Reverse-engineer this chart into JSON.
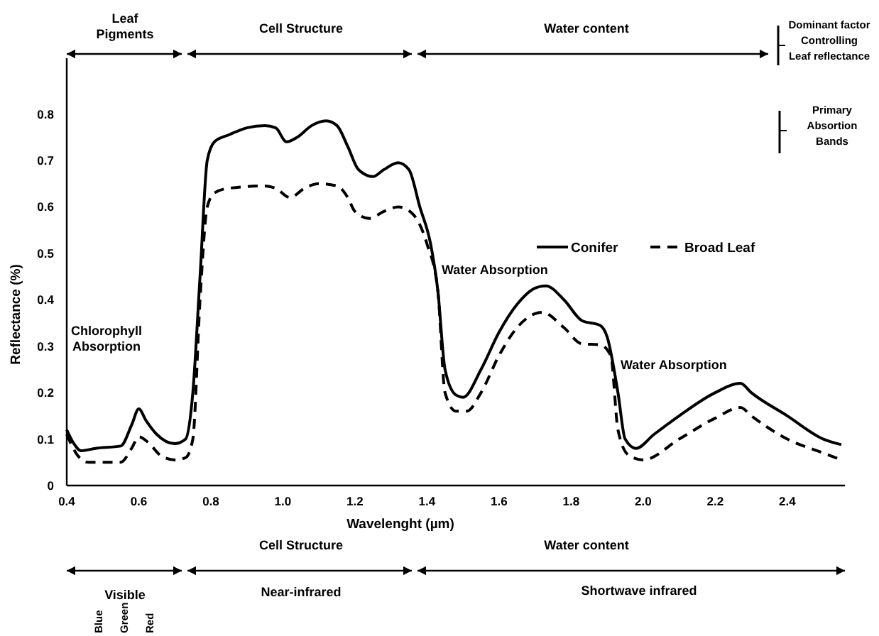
{
  "chart_data": {
    "type": "line",
    "xlabel": "Wavelenght (µm)",
    "ylabel": "Reflectance (%)",
    "xlim": [
      0.4,
      2.56
    ],
    "xticks": [
      {
        "value": 0.4,
        "label": "0.4"
      },
      {
        "value": 0.6,
        "label": "0.6"
      },
      {
        "value": 0.8,
        "label": "0.8"
      },
      {
        "value": 1.0,
        "label": "1.0"
      },
      {
        "value": 1.2,
        "label": "1.2"
      },
      {
        "value": 1.4,
        "label": "1.4"
      },
      {
        "value": 1.6,
        "label": "1.6"
      },
      {
        "value": 1.8,
        "label": "1.8"
      },
      {
        "value": 2.0,
        "label": "2.0"
      },
      {
        "value": 2.2,
        "label": "2.2"
      },
      {
        "value": 2.4,
        "label": "2.4"
      }
    ],
    "ylim": [
      0,
      0.92
    ],
    "yticks": [
      0,
      0.1,
      0.2,
      0.3,
      0.4,
      0.5,
      0.6,
      0.7,
      0.8
    ],
    "grid": false,
    "legend": "right",
    "marker": "none",
    "series": [
      {
        "name": "Conifer",
        "color": "#000000",
        "line_style": "solid",
        "x": [
          0.4,
          0.42,
          0.44,
          0.48,
          0.55,
          0.58,
          0.6,
          0.62,
          0.65,
          0.7,
          0.73,
          0.75,
          0.77,
          0.79,
          0.81,
          0.85,
          0.9,
          0.95,
          0.98,
          1.01,
          1.04,
          1.08,
          1.12,
          1.15,
          1.18,
          1.21,
          1.25,
          1.28,
          1.32,
          1.35,
          1.38,
          1.41,
          1.43,
          1.45,
          1.48,
          1.5,
          1.55,
          1.6,
          1.65,
          1.7,
          1.73,
          1.78,
          1.83,
          1.88,
          1.9,
          1.93,
          1.95,
          1.98,
          2.03,
          2.1,
          2.2,
          2.27,
          2.3,
          2.4,
          2.5,
          2.55
        ],
        "values": [
          0.12,
          0.09,
          0.075,
          0.08,
          0.085,
          0.13,
          0.165,
          0.14,
          0.11,
          0.09,
          0.1,
          0.2,
          0.45,
          0.7,
          0.74,
          0.755,
          0.77,
          0.775,
          0.77,
          0.74,
          0.75,
          0.775,
          0.785,
          0.775,
          0.73,
          0.68,
          0.665,
          0.68,
          0.695,
          0.68,
          0.6,
          0.52,
          0.42,
          0.25,
          0.195,
          0.19,
          0.25,
          0.33,
          0.39,
          0.425,
          0.43,
          0.4,
          0.355,
          0.345,
          0.32,
          0.2,
          0.1,
          0.08,
          0.11,
          0.15,
          0.2,
          0.22,
          0.2,
          0.15,
          0.1,
          0.088
        ]
      },
      {
        "name": "Broad Leaf",
        "color": "#000000",
        "line_style": "dashed",
        "x": [
          0.4,
          0.43,
          0.46,
          0.55,
          0.58,
          0.6,
          0.63,
          0.66,
          0.7,
          0.73,
          0.75,
          0.77,
          0.79,
          0.81,
          0.85,
          0.95,
          0.98,
          1.02,
          1.06,
          1.1,
          1.15,
          1.18,
          1.2,
          1.24,
          1.28,
          1.32,
          1.36,
          1.4,
          1.43,
          1.45,
          1.48,
          1.51,
          1.55,
          1.6,
          1.65,
          1.7,
          1.72,
          1.78,
          1.83,
          1.88,
          1.91,
          1.93,
          1.96,
          2.0,
          2.1,
          2.2,
          2.27,
          2.3,
          2.4,
          2.5,
          2.55
        ],
        "values": [
          0.11,
          0.065,
          0.05,
          0.05,
          0.08,
          0.105,
          0.09,
          0.065,
          0.055,
          0.06,
          0.1,
          0.4,
          0.6,
          0.63,
          0.64,
          0.645,
          0.64,
          0.62,
          0.64,
          0.65,
          0.645,
          0.62,
          0.59,
          0.575,
          0.59,
          0.6,
          0.585,
          0.52,
          0.42,
          0.2,
          0.16,
          0.16,
          0.2,
          0.28,
          0.34,
          0.37,
          0.373,
          0.34,
          0.305,
          0.303,
          0.28,
          0.12,
          0.065,
          0.055,
          0.1,
          0.145,
          0.168,
          0.15,
          0.1,
          0.07,
          0.055
        ]
      }
    ],
    "annotations": [
      "Leaf Pigments",
      "Cell Structure",
      "Water content",
      "Dominant factor Controlling Leaf reflectance",
      "Primary Absortion Bands",
      "Chlorophyll Absorption",
      "Water Absorption",
      "Water Absorption",
      "Cell Structure",
      "Water content",
      "Visible",
      "Near-infrared",
      "Shortwave infrared",
      "Blue",
      "Green",
      "Red"
    ]
  }
}
